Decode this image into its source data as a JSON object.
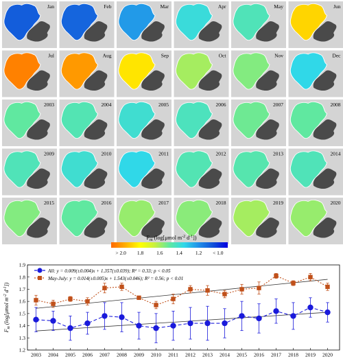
{
  "map_panels": [
    {
      "label": "Jan",
      "value": 1.08
    },
    {
      "label": "Feb",
      "value": 1.1
    },
    {
      "label": "Mar",
      "value": 1.22
    },
    {
      "label": "Apr",
      "value": 1.38
    },
    {
      "label": "May",
      "value": 1.45
    },
    {
      "label": "Jun",
      "value": 1.88
    },
    {
      "label": "Jul",
      "value": 2.05
    },
    {
      "label": "Aug",
      "value": 2.0
    },
    {
      "label": "Sep",
      "value": 1.85
    },
    {
      "label": "Oct",
      "value": 1.6
    },
    {
      "label": "Nov",
      "value": 1.55
    },
    {
      "label": "Dec",
      "value": 1.35
    },
    {
      "label": "2003",
      "value": 1.5
    },
    {
      "label": "2004",
      "value": 1.46
    },
    {
      "label": "2005",
      "value": 1.4
    },
    {
      "label": "2006",
      "value": 1.44
    },
    {
      "label": "2007",
      "value": 1.52
    },
    {
      "label": "2008",
      "value": 1.5
    },
    {
      "label": "2009",
      "value": 1.45
    },
    {
      "label": "2010",
      "value": 1.4
    },
    {
      "label": "2011",
      "value": 1.35
    },
    {
      "label": "2012",
      "value": 1.46
    },
    {
      "label": "2013",
      "value": 1.47
    },
    {
      "label": "2014",
      "value": 1.45
    },
    {
      "label": "2015",
      "value": 1.55
    },
    {
      "label": "2016",
      "value": 1.5
    },
    {
      "label": "2017",
      "value": 1.58
    },
    {
      "label": "2018",
      "value": 1.56
    },
    {
      "label": "2019",
      "value": 1.6
    },
    {
      "label": "2020",
      "value": 1.58
    }
  ],
  "colorbar": {
    "label": "F",
    "label_sub": "m",
    "label_rest": " (log[μmol m",
    "label_sup1": "-2",
    "label_mid": " d",
    "label_sup2": "-1",
    "label_end": "])",
    "range": [
      0.9,
      2.1
    ],
    "ticks": [
      {
        "value": 2.0,
        "text": "> 2.0"
      },
      {
        "value": 1.8,
        "text": "1.8"
      },
      {
        "value": 1.6,
        "text": "1.6"
      },
      {
        "value": 1.4,
        "text": "1.4"
      },
      {
        "value": 1.2,
        "text": "1.2"
      },
      {
        "value": 1.0,
        "text": "< 1.0"
      }
    ],
    "colors": [
      "#ff6a00",
      "#ffb000",
      "#ffff00",
      "#c8f040",
      "#60e8a0",
      "#30d8e8",
      "#2090e8",
      "#1050d8",
      "#0000e0"
    ]
  },
  "chart_data": {
    "type": "line",
    "x": [
      2003,
      2004,
      2005,
      2006,
      2007,
      2008,
      2009,
      2010,
      2011,
      2012,
      2013,
      2014,
      2015,
      2016,
      2017,
      2018,
      2019,
      2020
    ],
    "xlim": [
      2002.5,
      2020.7
    ],
    "ylim": [
      1.2,
      1.9
    ],
    "yticks": [
      1.2,
      1.3,
      1.4,
      1.5,
      1.6,
      1.7,
      1.8,
      1.9
    ],
    "ylabel": "F",
    "ylabel_sub": "m",
    "ylabel_rest": " (log[μmol m",
    "ylabel_sup1": "-2",
    "ylabel_mid": " d",
    "ylabel_sup2": "-1",
    "ylabel_end": "])",
    "series": [
      {
        "name": "All",
        "legend": "All: y = 0.009(±0.004)x + 1.357(±0.039); R² = 0.33; p < 0.05",
        "color": "#1a1adb",
        "marker": "circle",
        "values": [
          1.45,
          1.44,
          1.38,
          1.42,
          1.48,
          1.47,
          1.4,
          1.38,
          1.4,
          1.42,
          1.42,
          1.42,
          1.48,
          1.46,
          1.52,
          1.48,
          1.55,
          1.51
        ],
        "errors": [
          0.1,
          0.08,
          0.1,
          0.09,
          0.11,
          0.12,
          0.11,
          0.12,
          0.12,
          0.13,
          0.14,
          0.12,
          0.12,
          0.12,
          0.1,
          0.11,
          0.08,
          0.08
        ],
        "trend": [
          1.357,
          0.009
        ]
      },
      {
        "name": "May-July",
        "legend": "May-July: y = 0.014(±0.005)x + 1.543(±0.046); R² = 0.56; p < 0.01",
        "color": "#c0501a",
        "marker": "square",
        "values": [
          1.61,
          1.58,
          1.62,
          1.6,
          1.71,
          1.72,
          1.63,
          1.57,
          1.62,
          1.7,
          1.69,
          1.66,
          1.7,
          1.71,
          1.81,
          1.75,
          1.8,
          1.72
        ],
        "errors": [
          0.04,
          0.03,
          0.02,
          0.03,
          0.04,
          0.03,
          0.01,
          0.03,
          0.04,
          0.03,
          0.04,
          0.03,
          0.04,
          0.05,
          0.02,
          0.02,
          0.03,
          0.03
        ],
        "trend": [
          1.543,
          0.014
        ]
      }
    ]
  }
}
